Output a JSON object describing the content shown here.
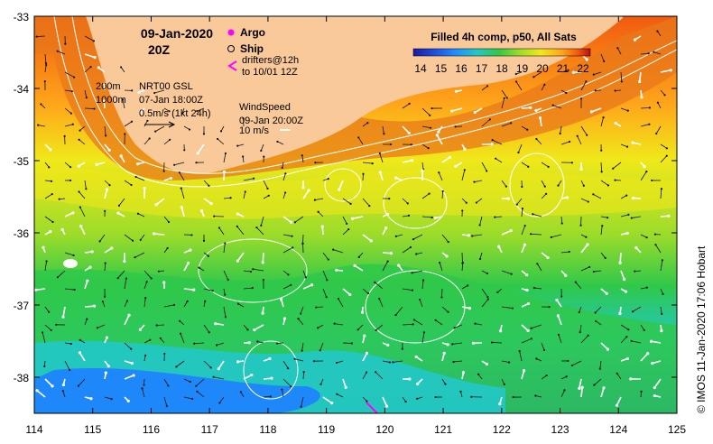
{
  "map": {
    "title_date": "09-Jan-2020",
    "title_time": "20Z",
    "colorbar_title": "Filled 4h comp, p50, All Sats",
    "colorbar_ticks": [
      "14",
      "15",
      "16",
      "17",
      "18",
      "19",
      "20",
      "21",
      "22"
    ],
    "colorbar_colors": [
      "#1a1aa0",
      "#1f4fe0",
      "#1e90ff",
      "#22c8c8",
      "#2fc84a",
      "#9cdc2a",
      "#f0e81a",
      "#ffa51a",
      "#f05a10",
      "#b81010"
    ],
    "legend": {
      "argo": "Argo",
      "ship": "Ship",
      "drifters_line1": "drifters@12h",
      "drifters_line2": "to 10/01 12Z",
      "depth_200": "200m",
      "depth_1000": "1000m",
      "nrt_line1": "NRT00 GSL",
      "nrt_line2": "07-Jan 18:00Z",
      "current_scale": "0.5m/s (1kt 24h)",
      "wind_title": "WindSpeed",
      "wind_time": "09-Jan 20:00Z",
      "wind_scale": "10 m/s"
    },
    "lat_ticks": [
      "-33",
      "-34",
      "-35",
      "-36",
      "-37",
      "-38"
    ],
    "lon_ticks": [
      "114",
      "115",
      "116",
      "117",
      "118",
      "119",
      "120",
      "121",
      "122",
      "123",
      "124",
      "125"
    ],
    "copyright": "© IMOS 11-Jan-2020 17:06 Hobart",
    "colors": {
      "land": "#f9c99a",
      "frame": "#000000",
      "argo": "#ff00ff"
    }
  }
}
